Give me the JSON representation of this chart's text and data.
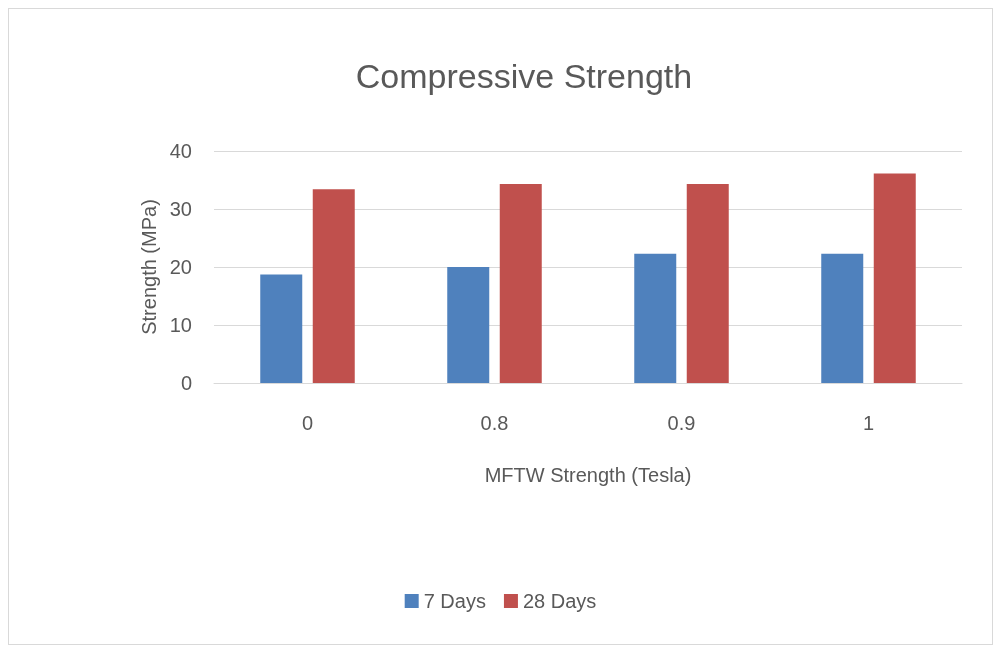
{
  "chart_data": {
    "type": "bar",
    "title": "Compressive Strength",
    "xlabel": "MFTW Strength (Tesla)",
    "ylabel": "Strength (MPa)",
    "categories": [
      "0",
      "0.8",
      "0.9",
      "1"
    ],
    "series": [
      {
        "name": "7 Days",
        "color": "#4f81bd",
        "values": [
          18.7,
          20.0,
          22.3,
          22.3
        ]
      },
      {
        "name": "28 Days",
        "color": "#c0504d",
        "values": [
          33.4,
          34.3,
          34.3,
          36.1
        ]
      }
    ],
    "ylim": [
      0,
      40
    ],
    "yticks": [
      0,
      10,
      20,
      30,
      40
    ],
    "grid": "y",
    "legend": "bottom"
  }
}
